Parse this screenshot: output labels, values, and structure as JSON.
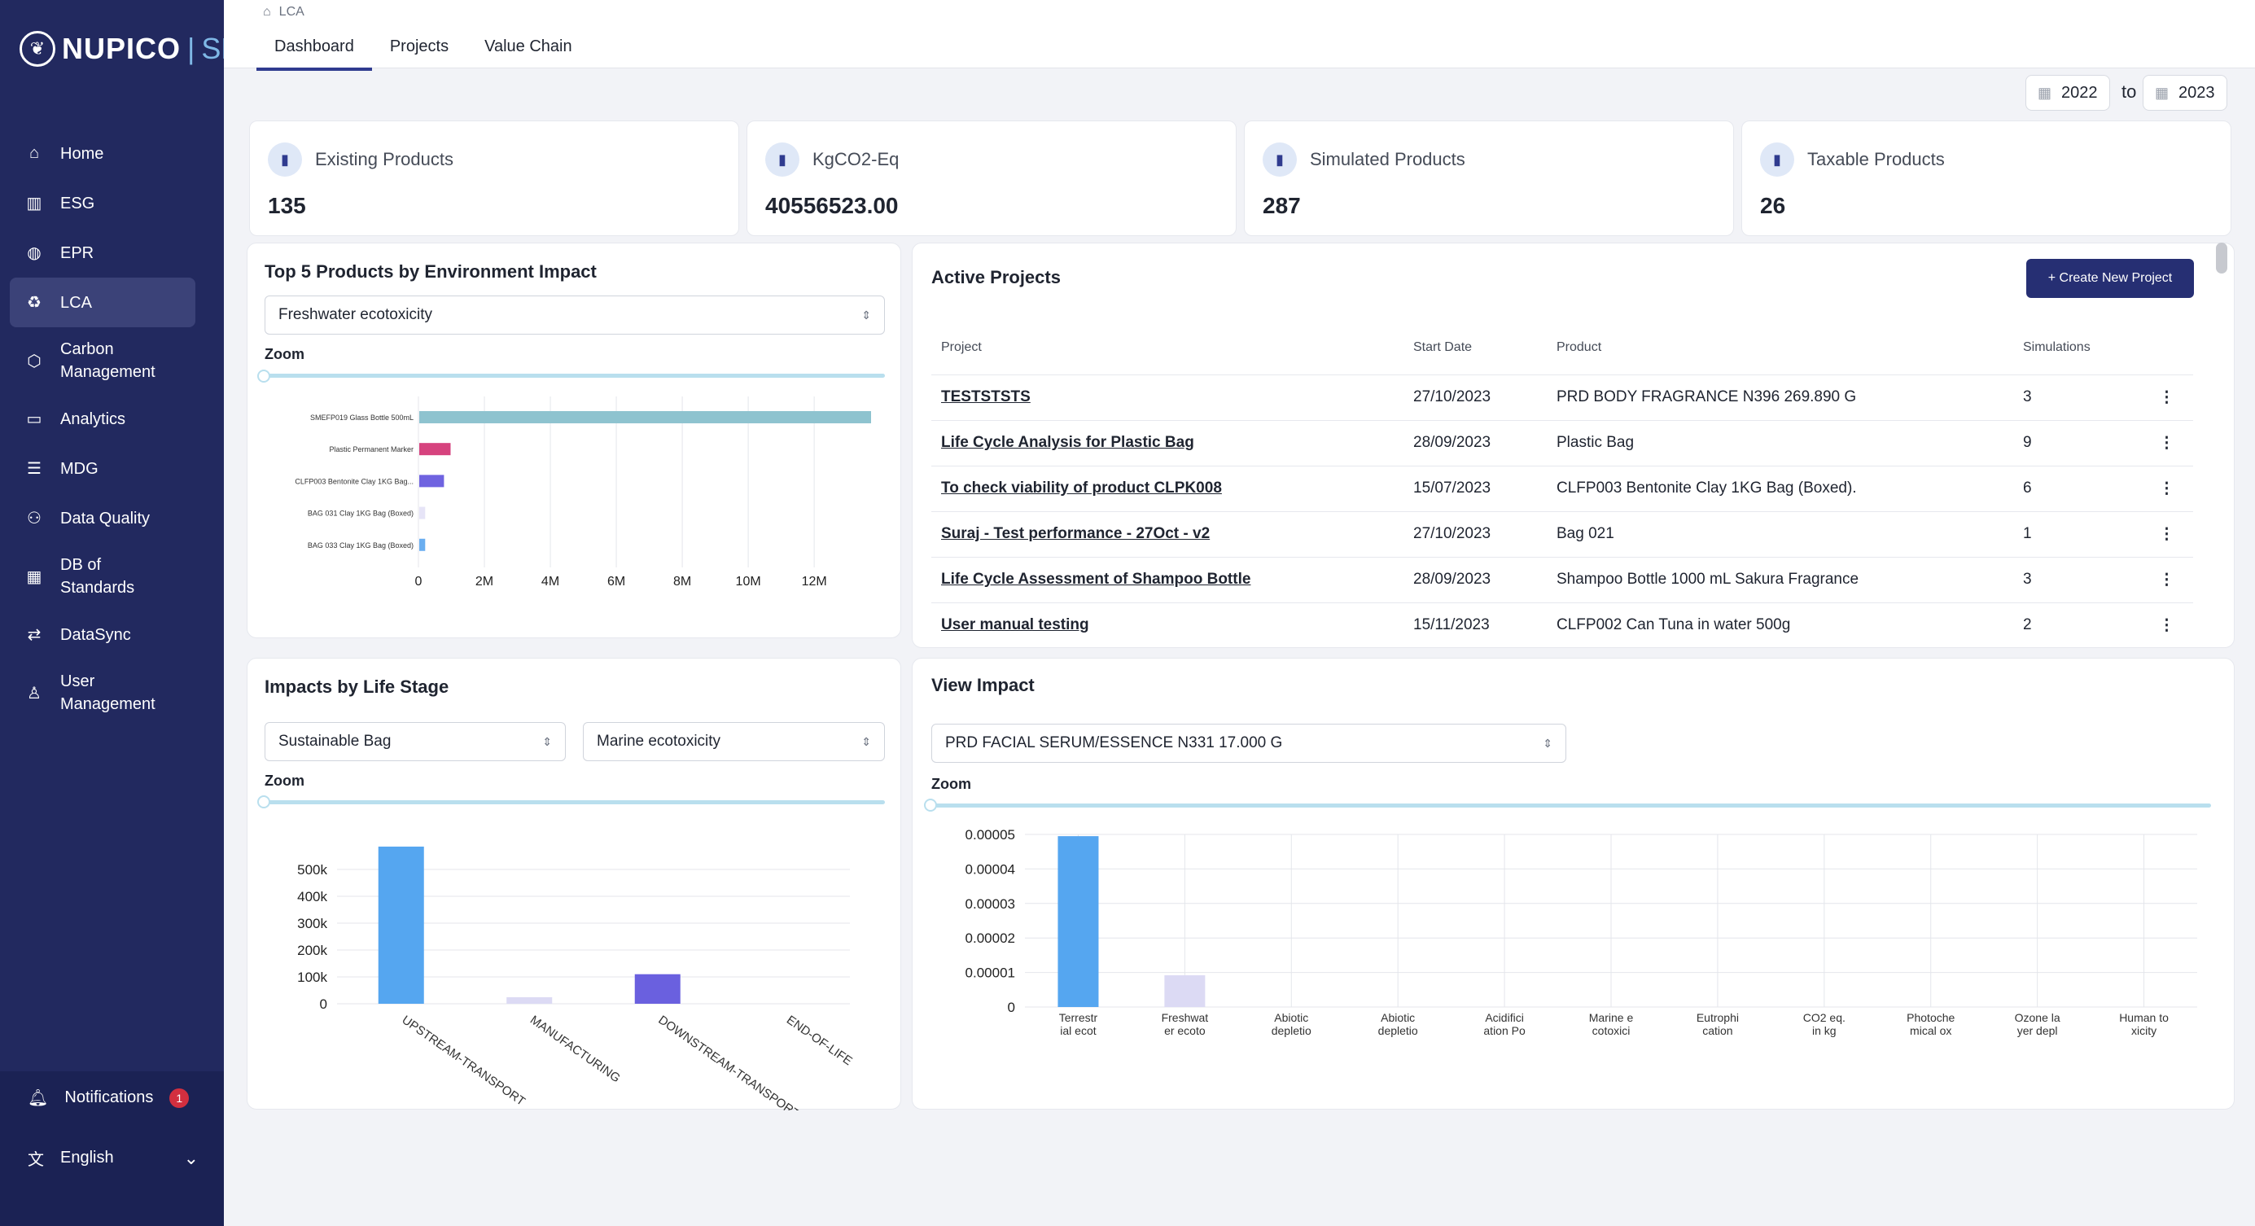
{
  "brand": {
    "name": "NUPICO",
    "sub": "SDP"
  },
  "sidebar": {
    "items": [
      {
        "label": "Home",
        "icon": "home-icon",
        "glyph": "⌂"
      },
      {
        "label": "ESG",
        "icon": "bank-icon",
        "glyph": "▥"
      },
      {
        "label": "EPR",
        "icon": "globe-icon",
        "glyph": "◍"
      },
      {
        "label": "LCA",
        "icon": "recycle-icon",
        "glyph": "♻"
      },
      {
        "label": "Carbon Management",
        "icon": "cube-icon",
        "glyph": "⬡"
      },
      {
        "label": "Analytics",
        "icon": "folder-icon",
        "glyph": "▭"
      },
      {
        "label": "MDG",
        "icon": "list-icon",
        "glyph": "☰"
      },
      {
        "label": "Data Quality",
        "icon": "network-icon",
        "glyph": "⚇"
      },
      {
        "label": "DB of Standards",
        "icon": "building-icon",
        "glyph": "▦"
      },
      {
        "label": "DataSync",
        "icon": "sync-icon",
        "glyph": "⇄"
      },
      {
        "label": "User Management",
        "icon": "user-icon",
        "glyph": "♙"
      }
    ],
    "notifications": {
      "label": "Notifications",
      "count": "1"
    },
    "language": {
      "label": "English"
    }
  },
  "breadcrumb": {
    "label": "LCA"
  },
  "tabs": [
    "Dashboard",
    "Projects",
    "Value Chain"
  ],
  "date_range": {
    "from": "2022",
    "to_label": "to",
    "to": "2023"
  },
  "stats": [
    {
      "label": "Existing Products",
      "value": "135"
    },
    {
      "label": "KgCO2-Eq",
      "value": "40556523.00"
    },
    {
      "label": "Simulated Products",
      "value": "287"
    },
    {
      "label": "Taxable Products",
      "value": "26"
    }
  ],
  "top5": {
    "title": "Top 5 Products by Environment Impact",
    "select": "Freshwater ecotoxicity",
    "zoom": "Zoom"
  },
  "life_stage": {
    "title": "Impacts by Life Stage",
    "select_product": "Sustainable  Bag",
    "select_metric": "Marine ecotoxicity",
    "zoom": "Zoom"
  },
  "view_impact": {
    "title": "View Impact",
    "select": "PRD FACIAL SERUM/ESSENCE N331 17.000 G",
    "zoom": "Zoom"
  },
  "projects": {
    "title": "Active Projects",
    "create_label": "+ Create New Project",
    "columns": [
      "Project",
      "Start Date",
      "Product",
      "Simulations"
    ],
    "rows": [
      {
        "project": "TESTSTSTS",
        "start": "27/10/2023",
        "product": "PRD BODY FRAGRANCE N396 269.890 G",
        "sims": "3"
      },
      {
        "project": "Life Cycle Analysis for Plastic Bag",
        "start": "28/09/2023",
        "product": "Plastic Bag",
        "sims": "9"
      },
      {
        "project": "To check viability of product CLPK008",
        "start": "15/07/2023",
        "product": "CLFP003 Bentonite Clay 1KG Bag (Boxed).",
        "sims": "6"
      },
      {
        "project": "Suraj - Test performance - 27Oct - v2",
        "start": "27/10/2023",
        "product": "Bag 021",
        "sims": "1"
      },
      {
        "project": "Life Cycle Assessment of Shampoo Bottle",
        "start": "28/09/2023",
        "product": "Shampoo Bottle 1000 mL Sakura Fragrance",
        "sims": "3"
      },
      {
        "project": "User manual testing",
        "start": "15/11/2023",
        "product": "CLFP002 Can Tuna in water 500g",
        "sims": "2"
      }
    ]
  },
  "chart_data": [
    {
      "type": "bar",
      "orientation": "horizontal",
      "title": "Top 5 Products by Environment Impact",
      "categories": [
        "SMEFP019 Glass Bottle 500mL",
        "Plastic Permanent Marker",
        "CLFP003 Bentonite Clay 1KG Bag...",
        "BAG 031 Clay 1KG Bag (Boxed)",
        "BAG 033 Clay 1KG Bag (Boxed)"
      ],
      "values": [
        13700000,
        950000,
        750000,
        180000,
        180000
      ],
      "colors": [
        "#8ec3cf",
        "#d6437e",
        "#6f63e0",
        "#e6e4f7",
        "#6aaef0"
      ],
      "xlim": [
        0,
        13700000
      ],
      "ticks": [
        0,
        2000000,
        4000000,
        6000000,
        8000000,
        10000000,
        12000000
      ],
      "tick_labels": [
        "0",
        "2M",
        "4M",
        "6M",
        "8M",
        "10M",
        "12M"
      ],
      "grid": true
    },
    {
      "type": "bar",
      "title": "Impacts by Life Stage",
      "categories": [
        "UPSTREAM-TRANSPORT",
        "MANUFACTURING",
        "DOWNSTREAM-TRANSPORT",
        "END-OF-LIFE"
      ],
      "values": [
        585000,
        20000,
        110000,
        0
      ],
      "colors": [
        "#55a6f0",
        "#dcdaf4",
        "#6a60df",
        "#6a60df"
      ],
      "ylim": [
        0,
        600000
      ],
      "ticks": [
        0,
        100000,
        200000,
        300000,
        400000,
        500000
      ],
      "tick_labels": [
        "0",
        "100k",
        "200k",
        "300k",
        "400k",
        "500k"
      ],
      "grid": true
    },
    {
      "type": "bar",
      "title": "View Impact",
      "categories": [
        "Terrestrial ecot",
        "Freshwater ecoto",
        "Abiotic depletio",
        "Abiotic depletio",
        "Acidification Po",
        "Marine ecotoxici",
        "Eutrophication",
        "CO2 eq. in kg",
        "Photochemical ox",
        "Ozone layer depl",
        "Human toxicity"
      ],
      "tick_labels_x": [
        [
          "Terrestr",
          "ial ecot"
        ],
        [
          "Freshwat",
          "er ecoto"
        ],
        [
          "Abiotic",
          "depletio"
        ],
        [
          "Abiotic",
          "depletio"
        ],
        [
          "Acidifici",
          "ation Po"
        ],
        [
          "Marine e",
          "cotoxici"
        ],
        [
          "Eutrophi",
          "cation"
        ],
        [
          "CO2 eq.",
          "in kg"
        ],
        [
          "Photoche",
          "mical ox"
        ],
        [
          "Ozone la",
          "yer depl"
        ],
        [
          "Human to",
          "xicity"
        ]
      ],
      "values": [
        4.95e-05,
        9.2e-06,
        0,
        0,
        0,
        0,
        0,
        0,
        0,
        0,
        0
      ],
      "colors": [
        "#55a6f0",
        "#dcdaf4",
        "#6a60df",
        "#6a60df",
        "#6a60df",
        "#6a60df",
        "#6a60df",
        "#6a60df",
        "#6a60df",
        "#6a60df",
        "#6a60df"
      ],
      "ylim": [
        0,
        5e-05
      ],
      "ticks": [
        0,
        1e-05,
        2e-05,
        3e-05,
        4e-05,
        5e-05
      ],
      "tick_labels": [
        "0",
        "0.00001",
        "0.00002",
        "0.00003",
        "0.00004",
        "0.00005"
      ],
      "grid": true
    }
  ]
}
